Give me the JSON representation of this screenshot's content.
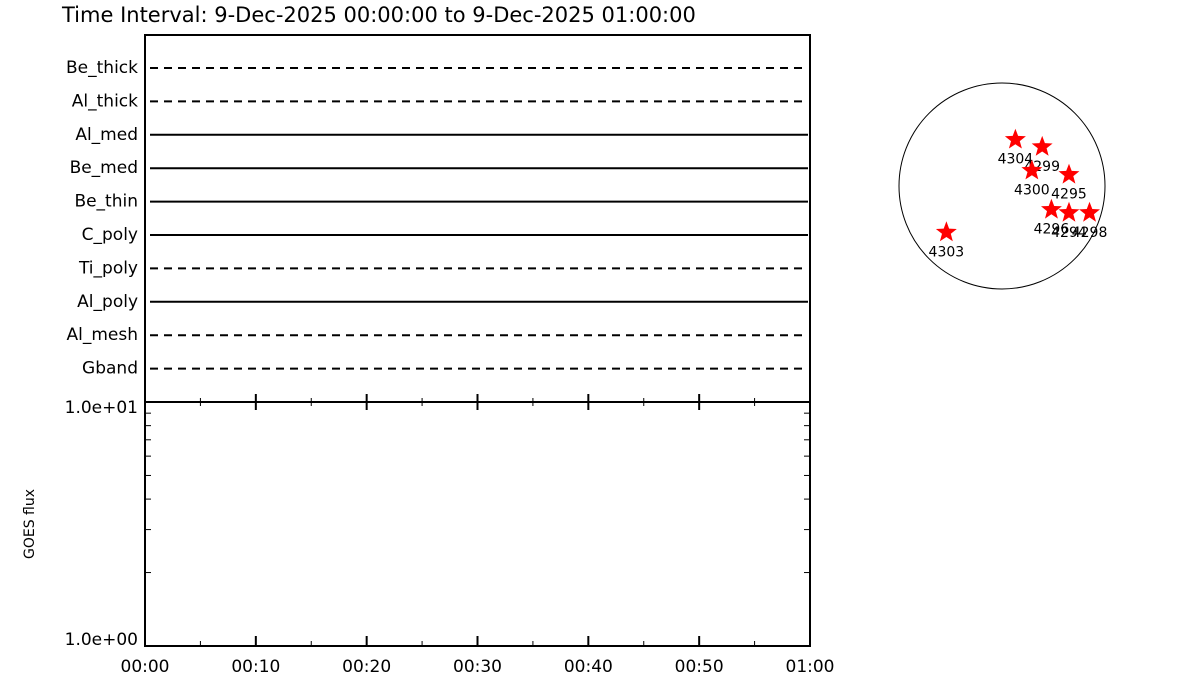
{
  "title": "Time Interval:  9-Dec-2025 00:00:00 to  9-Dec-2025 01:00:00",
  "filters": {
    "rows": [
      {
        "name": "Be_thick",
        "line_style": "dashed"
      },
      {
        "name": "Al_thick",
        "line_style": "dashed"
      },
      {
        "name": "Al_med",
        "line_style": "solid"
      },
      {
        "name": "Be_med",
        "line_style": "solid"
      },
      {
        "name": "Be_thin",
        "line_style": "solid"
      },
      {
        "name": "C_poly",
        "line_style": "solid"
      },
      {
        "name": "Ti_poly",
        "line_style": "dashed"
      },
      {
        "name": "Al_poly",
        "line_style": "solid"
      },
      {
        "name": "Al_mesh",
        "line_style": "dashed"
      },
      {
        "name": "Gband",
        "line_style": "dashed"
      }
    ]
  },
  "chart_data": {
    "type": "line",
    "ylabel": "GOES flux",
    "log_scale": true,
    "ylim": [
      1,
      10
    ],
    "yticks": [
      {
        "value": 1,
        "label": "1.0e+00"
      },
      {
        "value": 10,
        "label": "1.0e+01"
      }
    ],
    "minor_yticks": [
      2,
      3,
      4,
      5,
      6,
      7,
      8,
      9
    ],
    "xlim": [
      0,
      60
    ],
    "xticks": [
      {
        "value": 0,
        "label": "00:00"
      },
      {
        "value": 10,
        "label": "00:10"
      },
      {
        "value": 20,
        "label": "00:20"
      },
      {
        "value": 30,
        "label": "00:30"
      },
      {
        "value": 40,
        "label": "00:40"
      },
      {
        "value": 50,
        "label": "00:50"
      },
      {
        "value": 60,
        "label": "01:00"
      }
    ],
    "minor_xticks": [
      5,
      15,
      25,
      35,
      45,
      55
    ]
  },
  "sun_map": {
    "type": "scatter",
    "color": "#ff0000",
    "points": [
      {
        "label": "4304",
        "x": 0.13,
        "y": 0.45
      },
      {
        "label": "4299",
        "x": 0.39,
        "y": 0.38
      },
      {
        "label": "4300",
        "x": 0.29,
        "y": 0.15
      },
      {
        "label": "4295",
        "x": 0.65,
        "y": 0.11
      },
      {
        "label": "4296",
        "x": 0.48,
        "y": -0.23
      },
      {
        "label": "4294",
        "x": 0.65,
        "y": -0.26
      },
      {
        "label": "4298",
        "x": 0.85,
        "y": -0.26
      },
      {
        "label": "4303",
        "x": -0.54,
        "y": -0.45
      }
    ]
  }
}
